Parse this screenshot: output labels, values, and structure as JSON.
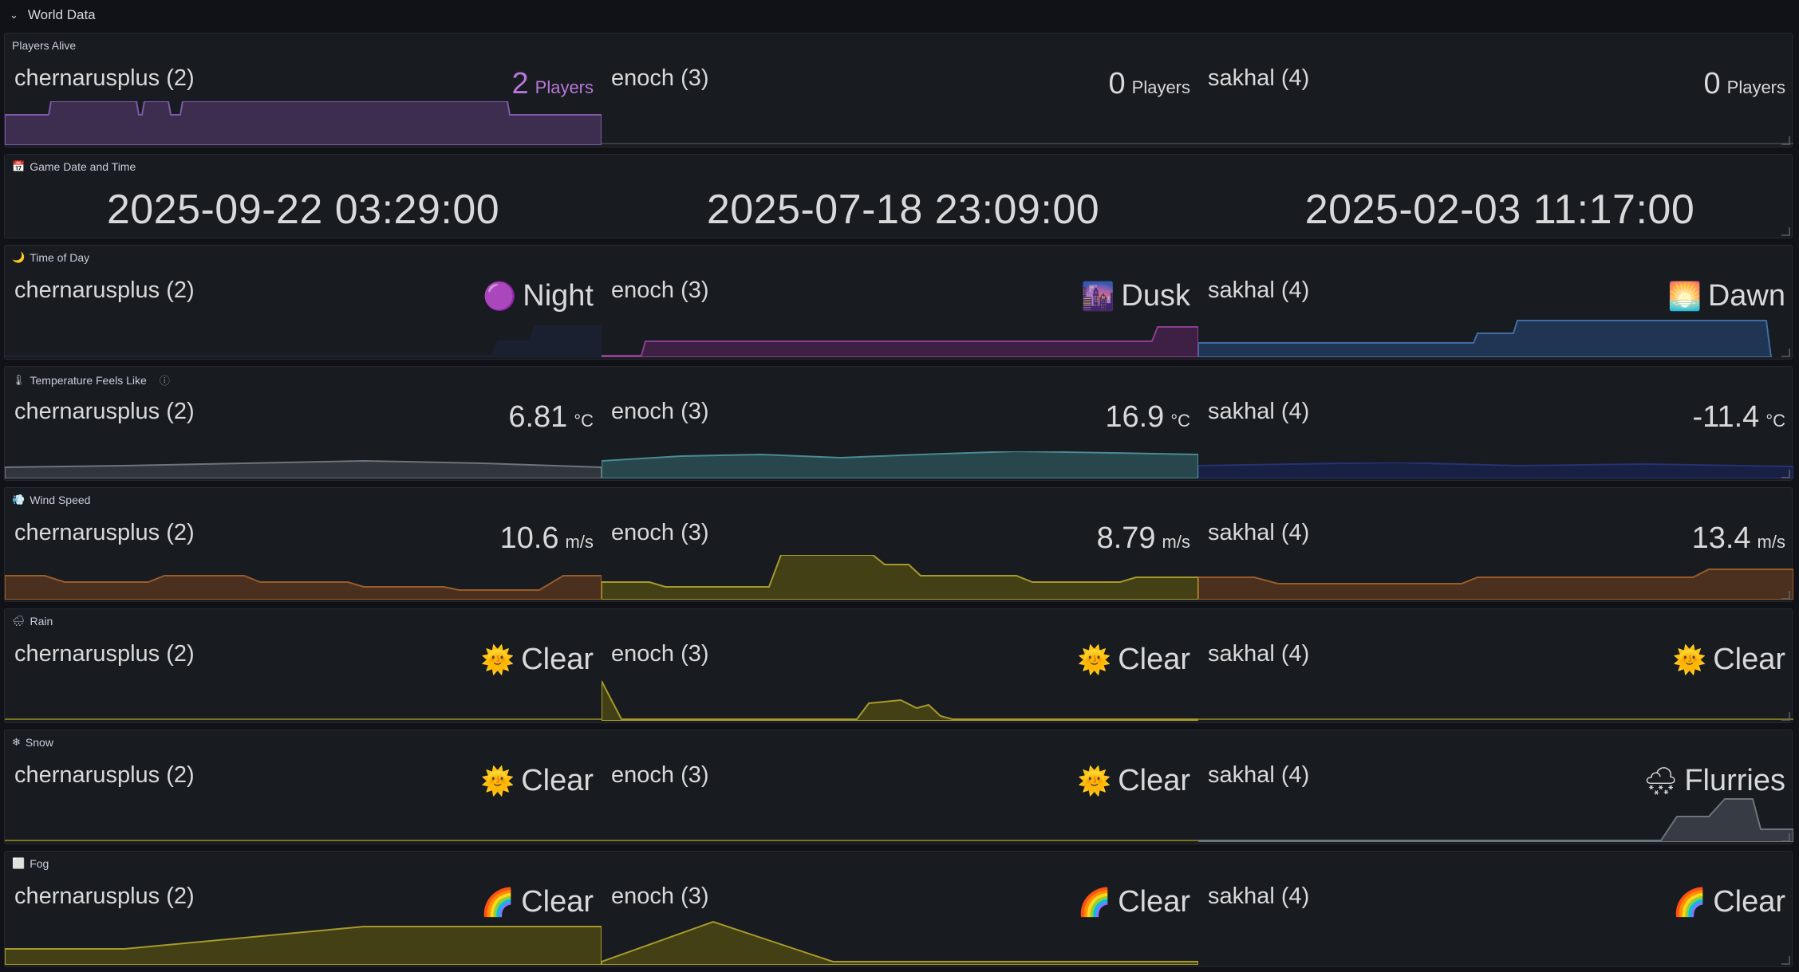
{
  "row_title": "World Data",
  "servers": [
    "chernarusplus (2)",
    "enoch (3)",
    "sakhal (4)"
  ],
  "panels": {
    "players": {
      "title": "Players Alive",
      "values": [
        {
          "num": "2",
          "unit": "Players",
          "color": "#b877d9"
        },
        {
          "num": "0",
          "unit": "Players",
          "color": "#d8d9da"
        },
        {
          "num": "0",
          "unit": "Players",
          "color": "#d8d9da"
        }
      ],
      "spark_colors": [
        "#7e5aa8",
        "#3a3d44",
        "#3a3d44"
      ]
    },
    "datetime": {
      "title": "Game Date and Time",
      "values": [
        "2025-09-22 03:29:00",
        "2025-07-18 23:09:00",
        "2025-02-03 11:17:00"
      ]
    },
    "timeofday": {
      "title": "Time of Day",
      "values": [
        {
          "emoji": "🟣",
          "word": "Night"
        },
        {
          "emoji": "🌆",
          "word": "Dusk"
        },
        {
          "emoji": "🌅",
          "word": "Dawn"
        }
      ]
    },
    "temperature": {
      "title": "Temperature Feels Like",
      "values": [
        {
          "num": "6.81",
          "unit": "°C"
        },
        {
          "num": "16.9",
          "unit": "°C"
        },
        {
          "num": "-11.4",
          "unit": "°C"
        }
      ]
    },
    "wind": {
      "title": "Wind Speed",
      "values": [
        {
          "num": "10.6",
          "unit": "m/s"
        },
        {
          "num": "8.79",
          "unit": "m/s"
        },
        {
          "num": "13.4",
          "unit": "m/s"
        }
      ]
    },
    "rain": {
      "title": "Rain",
      "values": [
        {
          "emoji": "🌞",
          "word": "Clear"
        },
        {
          "emoji": "🌞",
          "word": "Clear"
        },
        {
          "emoji": "🌞",
          "word": "Clear"
        }
      ]
    },
    "snow": {
      "title": "Snow",
      "values": [
        {
          "emoji": "🌞",
          "word": "Clear"
        },
        {
          "emoji": "🌞",
          "word": "Clear"
        },
        {
          "emoji": "🌨",
          "word": "Flurries"
        }
      ]
    },
    "fog": {
      "title": "Fog",
      "values": [
        {
          "emoji": "🌈",
          "word": "Clear"
        },
        {
          "emoji": "🌈",
          "word": "Clear"
        },
        {
          "emoji": "🌈",
          "word": "Clear"
        }
      ]
    }
  }
}
